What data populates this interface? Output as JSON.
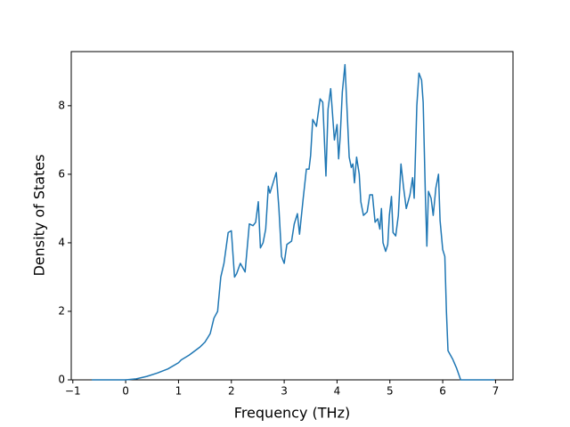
{
  "chart_data": {
    "type": "line",
    "x_label": "Frequency (THz)",
    "y_label": "Density of States",
    "xlim": [
      -1.03,
      7.33
    ],
    "ylim": [
      0,
      9.58
    ],
    "xticks": [
      {
        "value": -1,
        "label": "−1"
      },
      0,
      1,
      2,
      3,
      4,
      5,
      6,
      7
    ],
    "yticks": [
      0,
      2,
      4,
      6,
      8
    ],
    "grid": false,
    "series": [
      {
        "color": "#1f77b4",
        "x": [
          -0.64,
          0,
          0.2,
          0.4,
          0.6,
          0.8,
          1.0,
          1.05,
          1.2,
          1.4,
          1.5,
          1.6,
          1.67,
          1.74,
          1.8,
          1.86,
          1.94,
          2.0,
          2.06,
          2.1,
          2.17,
          2.26,
          2.34,
          2.41,
          2.46,
          2.51,
          2.55,
          2.6,
          2.65,
          2.7,
          2.73,
          2.8,
          2.85,
          2.9,
          2.95,
          3.0,
          3.05,
          3.14,
          3.19,
          3.25,
          3.29,
          3.36,
          3.42,
          3.47,
          3.5,
          3.54,
          3.61,
          3.68,
          3.73,
          3.79,
          3.83,
          3.88,
          3.95,
          4.0,
          4.03,
          4.06,
          4.1,
          4.15,
          4.18,
          4.23,
          4.27,
          4.3,
          4.33,
          4.37,
          4.42,
          4.45,
          4.5,
          4.57,
          4.62,
          4.67,
          4.72,
          4.77,
          4.81,
          4.84,
          4.87,
          4.92,
          4.96,
          4.99,
          5.03,
          5.06,
          5.11,
          5.16,
          5.21,
          5.26,
          5.31,
          5.38,
          5.43,
          5.46,
          5.51,
          5.55,
          5.6,
          5.63,
          5.67,
          5.7,
          5.73,
          5.78,
          5.82,
          5.87,
          5.92,
          5.95,
          6.0,
          6.04,
          6.07,
          6.1,
          6.19,
          6.26,
          6.34,
          6.98
        ],
        "values": [
          0,
          0,
          0.03,
          0.1,
          0.2,
          0.32,
          0.5,
          0.58,
          0.72,
          0.95,
          1.1,
          1.35,
          1.8,
          2.0,
          3.0,
          3.4,
          4.3,
          4.35,
          3.0,
          3.1,
          3.4,
          3.15,
          4.55,
          4.5,
          4.6,
          5.2,
          3.85,
          4.0,
          4.4,
          5.65,
          5.45,
          5.8,
          6.05,
          5.0,
          3.6,
          3.4,
          3.95,
          4.05,
          4.55,
          4.85,
          4.25,
          5.3,
          6.15,
          6.15,
          6.55,
          7.6,
          7.4,
          8.2,
          8.1,
          5.95,
          7.9,
          8.5,
          7.0,
          7.45,
          6.45,
          7.1,
          8.4,
          9.2,
          8.2,
          6.5,
          6.2,
          6.3,
          5.75,
          6.5,
          6.0,
          5.2,
          4.8,
          4.9,
          5.4,
          5.4,
          4.6,
          4.7,
          4.4,
          5.0,
          4.0,
          3.75,
          3.95,
          4.8,
          5.35,
          4.3,
          4.2,
          4.8,
          6.3,
          5.6,
          5.0,
          5.4,
          5.9,
          5.3,
          8.0,
          8.95,
          8.75,
          8.1,
          5.5,
          3.9,
          5.5,
          5.3,
          4.8,
          5.6,
          6.0,
          4.65,
          3.8,
          3.6,
          2.0,
          0.85,
          0.6,
          0.35,
          0,
          0
        ]
      }
    ]
  }
}
